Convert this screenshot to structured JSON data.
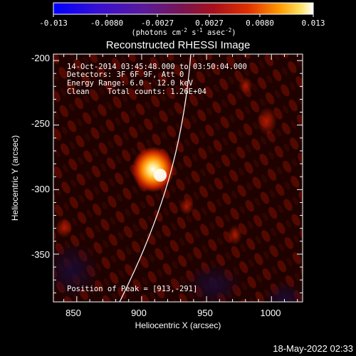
{
  "colorbar": {
    "tick_labels": [
      "-0.013",
      "-0.0080",
      "-0.0027",
      "0.0027",
      "0.0080",
      "0.013"
    ],
    "unit_label": "(photons cm",
    "unit_exp1": "-2",
    "unit_mid": " s",
    "unit_exp2": "-1",
    "unit_mid2": " asec",
    "unit_exp3": "-2",
    "unit_end": ")"
  },
  "plot": {
    "title": "Reconstructed RHESSI Image",
    "xlabel": "Heliocentric X (arcsec)",
    "ylabel": "Heliocentric Y (arcsec)",
    "x_ticks": [
      "850",
      "900",
      "950",
      "1000"
    ],
    "y_ticks": [
      "-200",
      "-250",
      "-300",
      "-350"
    ],
    "xlim": [
      832,
      1024
    ],
    "ylim": [
      -387,
      -195
    ]
  },
  "annotations": {
    "time_range": "14-Oct-2014 03:45:48.000 to 03:50:04.000",
    "detectors": "Detectors: 3F 6F 9F, Att 0",
    "energy": "Energy Range: 6.0 - 12.0 keV",
    "method": "Clean    Total counts: 1.26E+04",
    "peak": "Position of Peak = [913,-291]"
  },
  "footer": {
    "timestamp": "18-May-2022 02:33"
  },
  "colors": {
    "background": "#000000",
    "text": "#ffffff",
    "limb": "#ffffff"
  }
}
